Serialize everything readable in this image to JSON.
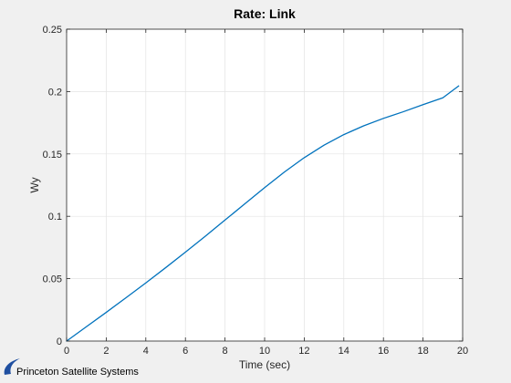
{
  "chart_data": {
    "type": "line",
    "title": "Rate: Link",
    "xlabel": "Time (sec)",
    "ylabel": "Wy",
    "xlim": [
      0,
      20
    ],
    "ylim": [
      0,
      0.25
    ],
    "x_ticks": [
      0,
      2,
      4,
      6,
      8,
      10,
      12,
      14,
      16,
      18,
      20
    ],
    "y_ticks": [
      0,
      0.05,
      0.1,
      0.15,
      0.2,
      0.25
    ],
    "x_tick_labels": [
      "0",
      "2",
      "4",
      "6",
      "8",
      "10",
      "12",
      "14",
      "16",
      "18",
      "20"
    ],
    "y_tick_labels": [
      "0",
      "0.05",
      "0.1",
      "0.15",
      "0.2",
      "0.25"
    ],
    "grid": true,
    "series": [
      {
        "color": "#0072bd",
        "x": [
          0,
          1,
          2,
          3,
          4,
          5,
          6,
          7,
          8,
          9,
          10,
          11,
          12,
          13,
          14,
          15,
          16,
          17,
          18,
          19,
          19.8
        ],
        "y": [
          0,
          0.0115,
          0.023,
          0.0347,
          0.0466,
          0.0588,
          0.0713,
          0.084,
          0.097,
          0.11,
          0.123,
          0.1355,
          0.147,
          0.157,
          0.1655,
          0.1725,
          0.1785,
          0.1838,
          0.1895,
          0.195,
          0.2045
        ]
      }
    ]
  },
  "branding": {
    "text": "Princeton Satellite Systems"
  },
  "colors": {
    "figure_bg": "#f0f0f0",
    "axes_bg": "#ffffff",
    "grid": "#e3e3e3",
    "axis": "#262626",
    "logo": "#1f4fa0"
  }
}
